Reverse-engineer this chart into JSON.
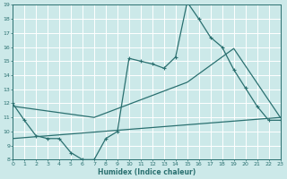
{
  "xlabel": "Humidex (Indice chaleur)",
  "xlim": [
    0,
    23
  ],
  "ylim": [
    8,
    19
  ],
  "yticks": [
    8,
    9,
    10,
    11,
    12,
    13,
    14,
    15,
    16,
    17,
    18,
    19
  ],
  "xticks": [
    0,
    1,
    2,
    3,
    4,
    5,
    6,
    7,
    8,
    9,
    10,
    11,
    12,
    13,
    14,
    15,
    16,
    17,
    18,
    19,
    20,
    21,
    22,
    23
  ],
  "bg_color": "#cce9e9",
  "grid_color": "#c0dcdc",
  "line_color": "#2a7070",
  "line1_x": [
    0,
    1,
    2,
    3,
    4,
    5,
    6,
    7,
    8,
    9,
    10,
    11,
    12,
    13,
    14,
    15,
    16,
    17,
    18,
    19,
    20,
    21,
    22,
    23
  ],
  "line1_y": [
    12.0,
    10.8,
    9.7,
    9.5,
    9.5,
    8.5,
    8.0,
    8.0,
    9.5,
    10.0,
    15.2,
    15.0,
    14.8,
    14.5,
    15.3,
    19.2,
    18.0,
    16.7,
    16.0,
    14.4,
    13.1,
    11.8,
    10.8,
    10.8
  ],
  "line2_x": [
    0,
    7,
    15,
    19,
    23
  ],
  "line2_y": [
    11.8,
    11.0,
    13.5,
    15.9,
    11.0
  ],
  "line3_x": [
    0,
    23
  ],
  "line3_y": [
    9.5,
    11.0
  ]
}
